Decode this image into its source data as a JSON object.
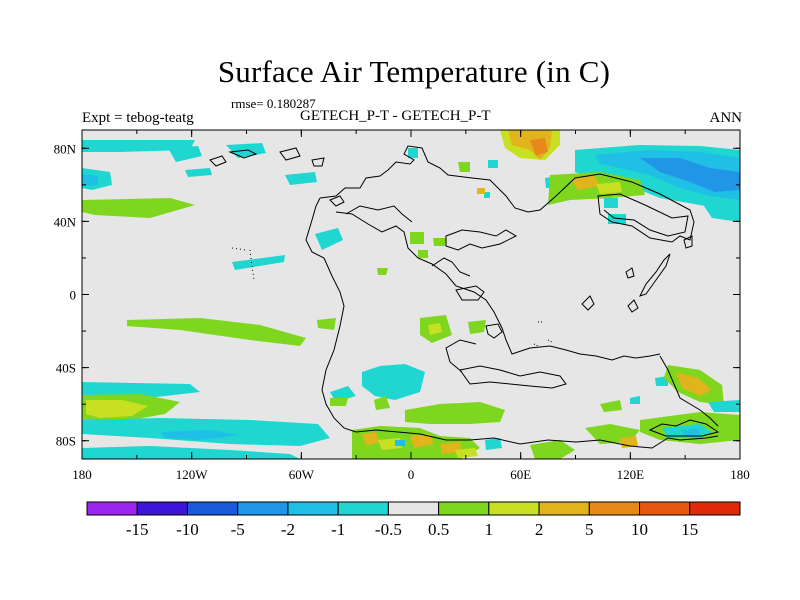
{
  "title": "Surface Air Temperature (in C)",
  "rmse": "rmse= 0.180287",
  "subtitle": "GETECH_P-T - GETECH_P-T",
  "left_label": "Expt = tebog-teatg",
  "right_label": "ANN",
  "map": {
    "projection": "cylindrical-equidistant",
    "lon_range": [
      -180,
      180
    ],
    "lat_range": [
      -90,
      90
    ],
    "background": "#e6e6e6",
    "lon_ticks": [
      {
        "value": -180,
        "label": "180"
      },
      {
        "value": -120,
        "label": "120W"
      },
      {
        "value": -60,
        "label": "60W"
      },
      {
        "value": 0,
        "label": "0"
      },
      {
        "value": 60,
        "label": "60E"
      },
      {
        "value": 120,
        "label": "120E"
      },
      {
        "value": 180,
        "label": "180"
      }
    ],
    "lat_ticks": [
      {
        "value": 80,
        "label": "80N"
      },
      {
        "value": 40,
        "label": "40N"
      },
      {
        "value": 0,
        "label": "0"
      },
      {
        "value": -40,
        "label": "40S"
      },
      {
        "value": -80,
        "label": "80S"
      }
    ]
  },
  "colorbar": {
    "colors": [
      "#9b26f0",
      "#3d14d9",
      "#1a5ad9",
      "#2196e6",
      "#1fbfe6",
      "#1fd6d0",
      "#e6e6e6",
      "#7ed61f",
      "#c8e022",
      "#e0b41a",
      "#e6891a",
      "#e6580f",
      "#e02a0a"
    ],
    "labels": [
      "-15",
      "-10",
      "-5",
      "-2",
      "-1",
      "-0.5",
      "0.5",
      "1",
      "2",
      "5",
      "10",
      "15"
    ]
  }
}
